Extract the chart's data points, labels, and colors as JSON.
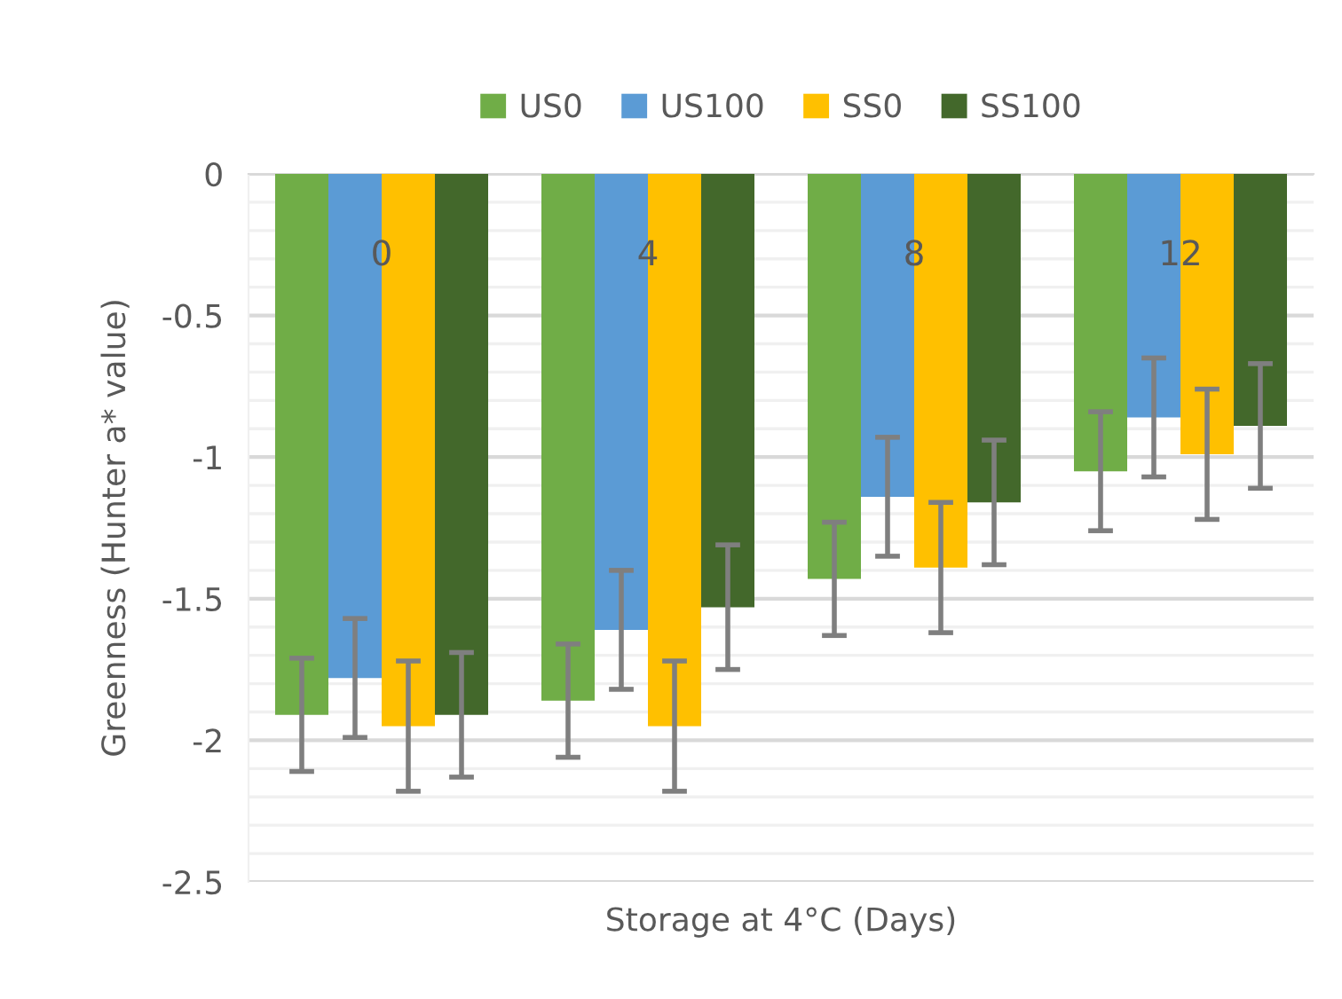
{
  "chart_data": {
    "type": "bar",
    "xlabel": "Storage at 4°C (Days)",
    "ylabel": "Greenness (Hunter a* value)",
    "categories": [
      "0",
      "4",
      "8",
      "12"
    ],
    "series": [
      {
        "name": "US0",
        "color": "#70ad47",
        "values": [
          -1.91,
          -1.86,
          -1.43,
          -1.05
        ],
        "errors": [
          0.2,
          0.2,
          0.2,
          0.21
        ]
      },
      {
        "name": "US100",
        "color": "#5b9bd5",
        "values": [
          -1.78,
          -1.61,
          -1.14,
          -0.86
        ],
        "errors": [
          0.21,
          0.21,
          0.21,
          0.21
        ]
      },
      {
        "name": "SS0",
        "color": "#ffc000",
        "values": [
          -1.95,
          -1.95,
          -1.39,
          -0.99
        ],
        "errors": [
          0.23,
          0.23,
          0.23,
          0.23
        ]
      },
      {
        "name": "SS100",
        "color": "#43682b",
        "values": [
          -1.91,
          -1.53,
          -1.16,
          -0.89
        ],
        "errors": [
          0.22,
          0.22,
          0.22,
          0.22
        ]
      }
    ],
    "ylim": [
      -2.5,
      0
    ],
    "yticks": [
      0,
      {
        "value": -0.1,
        "label": null
      },
      {
        "value": -0.2,
        "label": null
      },
      {
        "value": -0.3,
        "label": null
      },
      {
        "value": -0.4,
        "label": null
      },
      -0.5,
      {
        "value": -0.6,
        "label": null
      },
      {
        "value": -0.7,
        "label": null
      },
      {
        "value": -0.8,
        "label": null
      },
      {
        "value": -0.9,
        "label": null
      },
      -1,
      {
        "value": -1.1,
        "label": null
      },
      {
        "value": -1.2,
        "label": null
      },
      {
        "value": -1.3,
        "label": null
      },
      {
        "value": -1.4,
        "label": null
      },
      -1.5,
      {
        "value": -1.6,
        "label": null
      },
      {
        "value": -1.7,
        "label": null
      },
      {
        "value": -1.8,
        "label": null
      },
      {
        "value": -1.9,
        "label": null
      },
      -2,
      {
        "value": -2.1,
        "label": null
      },
      {
        "value": -2.2,
        "label": null
      },
      {
        "value": -2.3,
        "label": null
      },
      {
        "value": -2.4,
        "label": null
      },
      -2.5
    ],
    "grid": "y",
    "legend": "top"
  }
}
